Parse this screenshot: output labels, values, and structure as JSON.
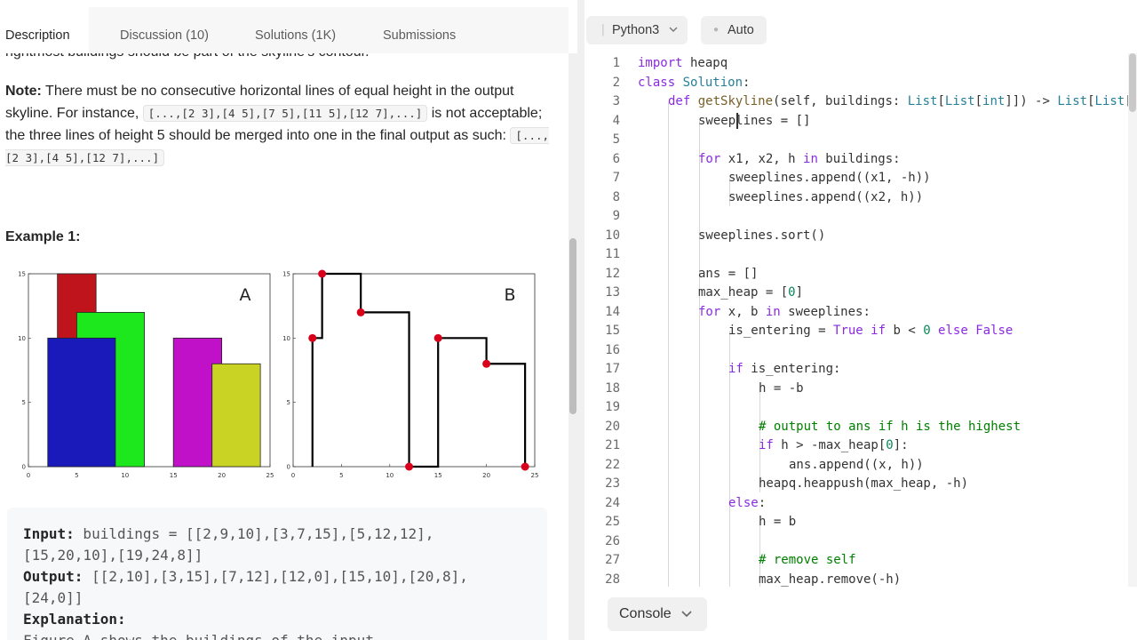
{
  "tabs": [
    {
      "label": "Description"
    },
    {
      "label": "Discussion (10)"
    },
    {
      "label": "Solutions (1K)"
    },
    {
      "label": "Submissions"
    }
  ],
  "description": {
    "cut_line": "rightmost buildings should be part of the skyline's contour.",
    "note_label": "Note:",
    "note_text_1": " There must be no consecutive horizontal lines of equal height in the output skyline. For instance, ",
    "note_code_1": "[...,[2 3],[4 5],[7 5],[11 5],[12 7],...]",
    "note_text_2": " is not acceptable; the three lines of height 5 should be merged into one in the final output as such: ",
    "note_code_2": "[...,[2 3],[4 5],[12 7],...]",
    "example_heading": "Example 1:"
  },
  "chart_data": [
    {
      "type": "bar",
      "panel_label": "A",
      "xlim": [
        0,
        25
      ],
      "ylim": [
        0,
        15
      ],
      "x_ticks": [
        "0",
        "5",
        "10",
        "15",
        "20",
        "25"
      ],
      "y_ticks": [
        "0",
        "5",
        "10",
        "15"
      ],
      "buildings": [
        {
          "left": 3,
          "right": 7,
          "height": 15,
          "color": "#c0141c"
        },
        {
          "left": 5,
          "right": 12,
          "height": 12,
          "color": "#1de81d"
        },
        {
          "left": 2,
          "right": 9,
          "height": 10,
          "color": "#1a1aba"
        },
        {
          "left": 15,
          "right": 20,
          "height": 10,
          "color": "#c010c8"
        },
        {
          "left": 19,
          "right": 24,
          "height": 8,
          "color": "#c9d323"
        }
      ]
    },
    {
      "type": "line",
      "panel_label": "B",
      "xlim": [
        0,
        25
      ],
      "ylim": [
        0,
        15
      ],
      "x_ticks": [
        "0",
        "5",
        "10",
        "15",
        "20",
        "25"
      ],
      "y_ticks": [
        "0",
        "5",
        "10",
        "15"
      ],
      "key_points": [
        [
          2,
          10
        ],
        [
          3,
          15
        ],
        [
          7,
          12
        ],
        [
          12,
          0
        ],
        [
          15,
          10
        ],
        [
          20,
          8
        ],
        [
          24,
          0
        ]
      ],
      "line_color": "#000000",
      "point_color": "#d9001b"
    }
  ],
  "example": {
    "input_label": "Input:",
    "input_line_1": " buildings = [[2,9,10],[3,7,15],[5,12,12],",
    "input_line_2": "[15,20,10],[19,24,8]]",
    "output_label": "Output:",
    "output_line_1": " [[2,10],[3,15],[7,12],[12,0],[15,10],[20,8],",
    "output_line_2": "[24,0]]",
    "explanation_label": "Explanation:",
    "explanation_line_1": "Figure A shows the buildings of the input."
  },
  "toolbar": {
    "language": "Python3",
    "mode": "Auto"
  },
  "code_lines": [
    {
      "n": "1"
    },
    {
      "n": "2"
    },
    {
      "n": "3"
    },
    {
      "n": "4"
    },
    {
      "n": "5"
    },
    {
      "n": "6"
    },
    {
      "n": "7"
    },
    {
      "n": "8"
    },
    {
      "n": "9"
    },
    {
      "n": "10"
    },
    {
      "n": "11"
    },
    {
      "n": "12"
    },
    {
      "n": "13"
    },
    {
      "n": "14"
    },
    {
      "n": "15"
    },
    {
      "n": "16"
    },
    {
      "n": "17"
    },
    {
      "n": "18"
    },
    {
      "n": "19"
    },
    {
      "n": "20"
    },
    {
      "n": "21"
    },
    {
      "n": "22"
    },
    {
      "n": "23"
    },
    {
      "n": "24"
    },
    {
      "n": "25"
    },
    {
      "n": "26"
    },
    {
      "n": "27"
    },
    {
      "n": "28"
    }
  ],
  "code": {
    "l1_kw": "import",
    "l1_rest": " heapq",
    "l2_kw": "class",
    "l2_cls": " Solution",
    "l2_rest": ":",
    "l3_kw": "def",
    "l3_fn": " getSkyline",
    "l3_rest": "(self, buildings: ",
    "l3_t1": "List",
    "l3_r2": "[",
    "l3_t2": "List",
    "l3_r3": "[",
    "l3_t3": "int",
    "l3_r4": "]]) -> ",
    "l3_t4": "List",
    "l3_r5": "[",
    "l3_t5": "List",
    "l3_r6": "[",
    "l4": "sweeplines = []",
    "l6_kw": "for",
    "l6_a": " x1, x2, h ",
    "l6_kw2": "in",
    "l6_b": " buildings:",
    "l7": "sweeplines.append((x1, -h))",
    "l8": "sweeplines.append((x2, h))",
    "l10": "sweeplines.sort()",
    "l12": "ans = []",
    "l13_a": "max_heap = [",
    "l13_num": "0",
    "l13_b": "]",
    "l14_kw": "for",
    "l14_a": " x, b ",
    "l14_kw2": "in",
    "l14_b": " sweeplines:",
    "l15_a": "is_entering = ",
    "l15_kw1": "True",
    "l15_kw2": " if",
    "l15_b": " b < ",
    "l15_num": "0",
    "l15_kw3": " else",
    "l15_kw4": " False",
    "l17_kw": "if",
    "l17_b": " is_entering:",
    "l18": "h = -b",
    "l20": "# output to ans if h is the highest",
    "l21_kw": "if",
    "l21_a": " h > -max_heap[",
    "l21_num": "0",
    "l21_b": "]:",
    "l22": "ans.append((x, h))",
    "l23": "heapq.heappush(max_heap, -h)",
    "l24_kw": "else",
    "l24_rest": ":",
    "l25": "h = b",
    "l27": "# remove self",
    "l28": "max_heap.remove(-h)"
  },
  "console": {
    "label": "Console"
  }
}
